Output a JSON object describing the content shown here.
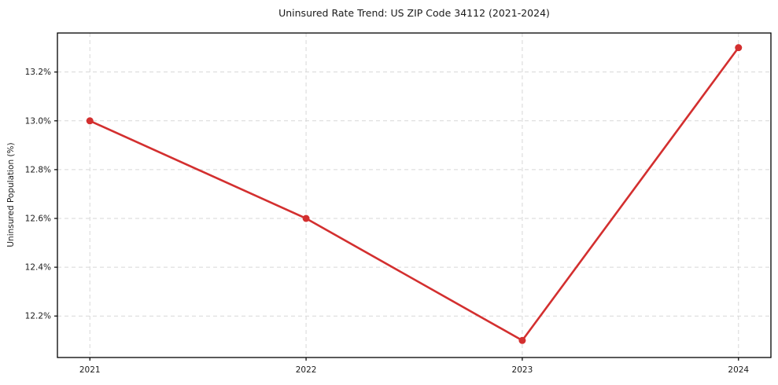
{
  "chart_data": {
    "type": "line",
    "title": "Uninsured Rate Trend: US ZIP Code 34112 (2021-2024)",
    "xlabel": "",
    "ylabel": "Uninsured Population (%)",
    "categories": [
      "2021",
      "2022",
      "2023",
      "2024"
    ],
    "series": [
      {
        "name": "Uninsured rate",
        "values": [
          13.0,
          12.6,
          12.1,
          13.3
        ]
      }
    ],
    "yticks": [
      {
        "value": 12.2,
        "label": "12.2%"
      },
      {
        "value": 12.4,
        "label": "12.4%"
      },
      {
        "value": 12.6,
        "label": "12.6%"
      },
      {
        "value": 12.8,
        "label": "12.8%"
      },
      {
        "value": 13.0,
        "label": "13.0%"
      },
      {
        "value": 13.2,
        "label": "13.2%"
      }
    ],
    "ylim": [
      12.03,
      13.36
    ],
    "xlim": [
      -0.15,
      3.15
    ],
    "grid": true,
    "legend_position": "none",
    "colors": {
      "line": "#d32f2f",
      "marker": "#d32f2f",
      "grid": "#d7d7d7",
      "spine": "#000000",
      "text": "#1a1a1a",
      "background": "#ffffff"
    }
  }
}
